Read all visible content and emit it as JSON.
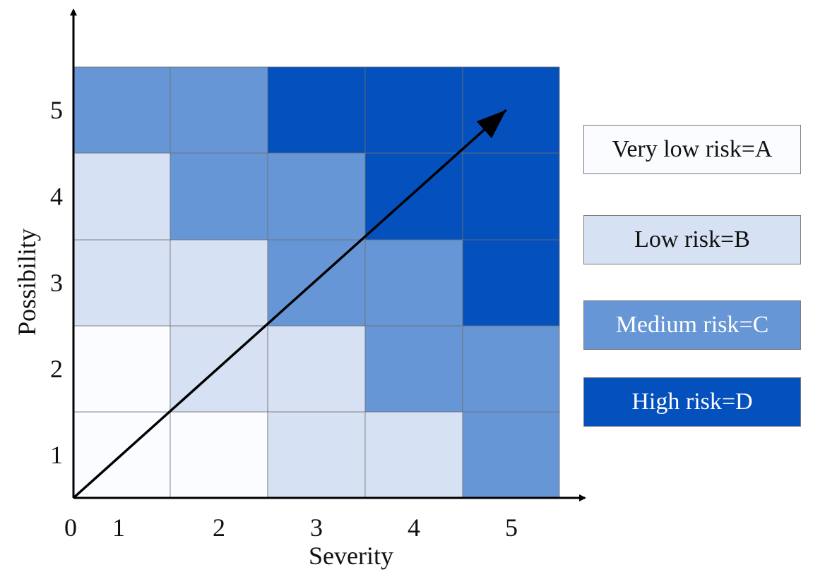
{
  "chart_data": {
    "type": "heatmap",
    "title": "",
    "xlabel": "Severity",
    "ylabel": "Possibility",
    "x_categories": [
      "1",
      "2",
      "3",
      "4",
      "5"
    ],
    "y_categories": [
      "1",
      "2",
      "3",
      "4",
      "5"
    ],
    "origin_label": "0",
    "xlim": [
      0,
      5
    ],
    "ylim": [
      0,
      5
    ],
    "grid": true,
    "colors": {
      "A": "#fafcff",
      "B": "#d6e2f4",
      "C": "#6796d6",
      "D": "#0450bd"
    },
    "cells": [
      [
        "A",
        "A",
        "B",
        "B",
        "C"
      ],
      [
        "A",
        "B",
        "B",
        "C",
        "C"
      ],
      [
        "B",
        "B",
        "C",
        "C",
        "D"
      ],
      [
        "B",
        "C",
        "C",
        "D",
        "D"
      ],
      [
        "C",
        "C",
        "D",
        "D",
        "D"
      ]
    ],
    "trend_arrow": {
      "from": [
        0,
        0
      ],
      "to": [
        4.45,
        4.5
      ]
    },
    "legend": [
      {
        "key": "A",
        "label": "Very low risk=A",
        "color": "#fafcff",
        "text_color": "#111111"
      },
      {
        "key": "B",
        "label": "Low risk=B",
        "color": "#d6e2f4",
        "text_color": "#111111"
      },
      {
        "key": "C",
        "label": "Medium risk=C",
        "color": "#6796d6",
        "text_color": "#ffffff"
      },
      {
        "key": "D",
        "label": "High risk=D",
        "color": "#0450bd",
        "text_color": "#ffffff"
      }
    ],
    "legend_placement": "right"
  }
}
